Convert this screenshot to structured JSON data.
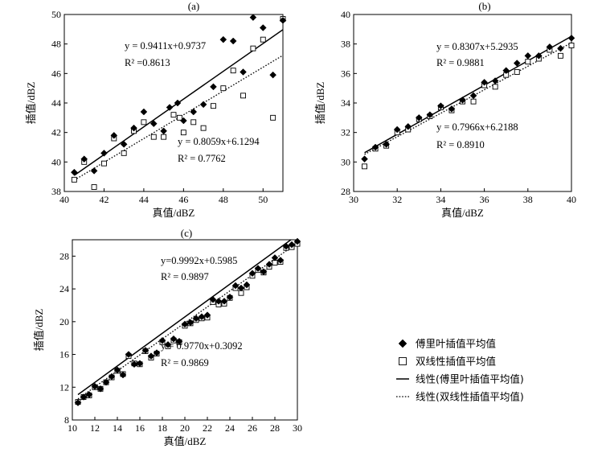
{
  "chart_data": [
    {
      "type": "scatter",
      "panel_label": "(a)",
      "xlabel": "真值/dBZ",
      "ylabel": "插值/dBZ",
      "xlim": [
        40,
        51
      ],
      "ylim": [
        38,
        50
      ],
      "xticks": [
        40,
        42,
        44,
        46,
        48,
        50
      ],
      "yticks": [
        38,
        40,
        42,
        44,
        46,
        48,
        50
      ],
      "series": [
        {
          "name": "傅里叶插值平均值",
          "marker": "diamond",
          "points": [
            [
              40.5,
              39.3
            ],
            [
              41.0,
              40.2
            ],
            [
              41.5,
              39.4
            ],
            [
              42.0,
              40.6
            ],
            [
              42.5,
              41.8
            ],
            [
              43.0,
              41.2
            ],
            [
              43.5,
              42.3
            ],
            [
              44.0,
              43.4
            ],
            [
              44.5,
              42.6
            ],
            [
              45.0,
              42.1
            ],
            [
              45.3,
              43.7
            ],
            [
              45.7,
              44.0
            ],
            [
              46.0,
              42.8
            ],
            [
              46.5,
              43.4
            ],
            [
              47.0,
              43.9
            ],
            [
              47.5,
              45.1
            ],
            [
              48.0,
              48.3
            ],
            [
              48.5,
              48.2
            ],
            [
              49.0,
              46.1
            ],
            [
              49.5,
              49.8
            ],
            [
              50.0,
              49.1
            ],
            [
              50.5,
              45.9
            ],
            [
              51.0,
              49.6
            ]
          ]
        },
        {
          "name": "双线性插值平均值",
          "marker": "square",
          "points": [
            [
              40.5,
              38.8
            ],
            [
              41.0,
              40.0
            ],
            [
              41.5,
              38.3
            ],
            [
              42.0,
              39.9
            ],
            [
              42.5,
              41.6
            ],
            [
              43.0,
              40.6
            ],
            [
              43.5,
              42.1
            ],
            [
              44.0,
              42.7
            ],
            [
              44.5,
              41.7
            ],
            [
              45.0,
              41.7
            ],
            [
              45.5,
              43.2
            ],
            [
              45.8,
              43.0
            ],
            [
              46.0,
              42.0
            ],
            [
              46.5,
              42.7
            ],
            [
              47.0,
              42.3
            ],
            [
              47.5,
              43.8
            ],
            [
              48.0,
              45.0
            ],
            [
              48.5,
              46.2
            ],
            [
              49.0,
              44.5
            ],
            [
              49.5,
              47.7
            ],
            [
              50.0,
              48.3
            ],
            [
              50.5,
              43.0
            ],
            [
              51.0,
              49.7
            ]
          ]
        }
      ],
      "fits": [
        {
          "name": "线性(傅里叶插值平均值)",
          "style": "solid",
          "slope": 0.9411,
          "intercept": 0.9737,
          "x_range": [
            40.5,
            51
          ]
        },
        {
          "name": "线性(双线性插值平均值)",
          "style": "dotted",
          "slope": 0.8059,
          "intercept": 6.1294,
          "x_range": [
            40.5,
            51
          ]
        }
      ],
      "annotations": [
        {
          "equation": "y = 0.9411x+0.9737",
          "r2": "R² =0.8613"
        },
        {
          "equation": "y = 0.8059x+6.1294",
          "r2": "R² = 0.7762"
        }
      ]
    },
    {
      "type": "scatter",
      "panel_label": "(b)",
      "xlabel": "真值/dBZ",
      "ylabel": "插值/dBZ",
      "xlim": [
        30,
        40
      ],
      "ylim": [
        28,
        40
      ],
      "xticks": [
        30,
        32,
        34,
        36,
        38,
        40
      ],
      "yticks": [
        28,
        30,
        32,
        34,
        36,
        38,
        40
      ],
      "series": [
        {
          "name": "傅里叶插值平均值",
          "marker": "diamond",
          "points": [
            [
              30.5,
              30.2
            ],
            [
              31.0,
              31.0
            ],
            [
              31.5,
              31.2
            ],
            [
              32.0,
              32.2
            ],
            [
              32.5,
              32.4
            ],
            [
              33.0,
              33.0
            ],
            [
              33.5,
              33.2
            ],
            [
              34.0,
              33.8
            ],
            [
              34.5,
              33.6
            ],
            [
              35.0,
              34.2
            ],
            [
              35.5,
              34.5
            ],
            [
              36.0,
              35.4
            ],
            [
              36.5,
              35.5
            ],
            [
              37.0,
              36.2
            ],
            [
              37.5,
              36.7
            ],
            [
              38.0,
              37.2
            ],
            [
              38.5,
              37.2
            ],
            [
              39.0,
              37.8
            ],
            [
              39.5,
              37.7
            ],
            [
              40.0,
              38.4
            ]
          ]
        },
        {
          "name": "双线性插值平均值",
          "marker": "square",
          "points": [
            [
              30.5,
              29.7
            ],
            [
              31.0,
              30.9
            ],
            [
              31.5,
              31.1
            ],
            [
              32.0,
              32.0
            ],
            [
              32.5,
              32.2
            ],
            [
              33.0,
              32.9
            ],
            [
              33.5,
              33.1
            ],
            [
              34.0,
              33.7
            ],
            [
              34.5,
              33.5
            ],
            [
              35.0,
              34.1
            ],
            [
              35.5,
              34.1
            ],
            [
              36.0,
              35.2
            ],
            [
              36.5,
              35.1
            ],
            [
              37.0,
              35.9
            ],
            [
              37.5,
              36.1
            ],
            [
              38.0,
              36.8
            ],
            [
              38.5,
              37.0
            ],
            [
              39.0,
              37.6
            ],
            [
              39.5,
              37.2
            ],
            [
              40.0,
              37.9
            ]
          ]
        }
      ],
      "fits": [
        {
          "name": "线性(傅里叶插值平均值)",
          "style": "solid",
          "slope": 0.8307,
          "intercept": 5.2935,
          "x_range": [
            30.5,
            40
          ]
        },
        {
          "name": "线性(双线性插值平均值)",
          "style": "dotted",
          "slope": 0.7966,
          "intercept": 6.2188,
          "x_range": [
            30.5,
            40
          ]
        }
      ],
      "annotations": [
        {
          "equation": "y = 0.8307x+5.2935",
          "r2": "R² = 0.9881"
        },
        {
          "equation": "y = 0.7966x+6.2188",
          "r2": "R² = 0.8910"
        }
      ]
    },
    {
      "type": "scatter",
      "panel_label": "(c)",
      "xlabel": "真值/dBZ",
      "ylabel": "插值/dBZ",
      "xlim": [
        10,
        30
      ],
      "ylim": [
        8,
        30
      ],
      "xticks": [
        10,
        12,
        14,
        16,
        18,
        20,
        22,
        24,
        26,
        28,
        30
      ],
      "yticks": [
        8,
        12,
        16,
        20,
        24,
        28
      ],
      "series": [
        {
          "name": "傅里叶插值平均值",
          "marker": "diamond",
          "points": [
            [
              10.5,
              10.1
            ],
            [
              11.0,
              10.8
            ],
            [
              11.5,
              11.1
            ],
            [
              12.0,
              12.1
            ],
            [
              12.5,
              11.8
            ],
            [
              13.0,
              12.6
            ],
            [
              13.5,
              13.3
            ],
            [
              14.0,
              14.1
            ],
            [
              14.5,
              13.5
            ],
            [
              15.0,
              16.0
            ],
            [
              15.5,
              14.8
            ],
            [
              16.0,
              14.9
            ],
            [
              16.5,
              16.5
            ],
            [
              17.0,
              15.8
            ],
            [
              17.5,
              16.2
            ],
            [
              18.0,
              17.7
            ],
            [
              18.5,
              17.2
            ],
            [
              19.0,
              17.9
            ],
            [
              19.5,
              17.6
            ],
            [
              20.0,
              19.7
            ],
            [
              20.5,
              19.9
            ],
            [
              21.0,
              20.4
            ],
            [
              21.5,
              20.6
            ],
            [
              22.0,
              20.8
            ],
            [
              22.5,
              22.7
            ],
            [
              23.0,
              22.5
            ],
            [
              23.5,
              22.5
            ],
            [
              24.0,
              23.0
            ],
            [
              24.5,
              24.4
            ],
            [
              25.0,
              24.1
            ],
            [
              25.5,
              24.5
            ],
            [
              26.0,
              25.9
            ],
            [
              26.5,
              26.5
            ],
            [
              27.0,
              26.1
            ],
            [
              27.5,
              27.0
            ],
            [
              28.0,
              27.8
            ],
            [
              28.5,
              27.5
            ],
            [
              29.0,
              29.2
            ],
            [
              29.5,
              29.4
            ],
            [
              30.0,
              29.8
            ]
          ]
        },
        {
          "name": "双线性插值平均值",
          "marker": "square",
          "points": [
            [
              10.5,
              10.2
            ],
            [
              11.0,
              10.8
            ],
            [
              11.5,
              11.0
            ],
            [
              12.0,
              12.0
            ],
            [
              12.5,
              11.8
            ],
            [
              13.0,
              12.6
            ],
            [
              13.5,
              13.2
            ],
            [
              14.0,
              14.0
            ],
            [
              14.5,
              13.6
            ],
            [
              15.0,
              15.8
            ],
            [
              15.5,
              14.9
            ],
            [
              16.0,
              14.8
            ],
            [
              16.5,
              16.4
            ],
            [
              17.0,
              15.6
            ],
            [
              17.5,
              16.1
            ],
            [
              18.0,
              17.5
            ],
            [
              18.5,
              17.0
            ],
            [
              19.0,
              17.7
            ],
            [
              19.5,
              17.5
            ],
            [
              20.0,
              19.5
            ],
            [
              20.5,
              19.8
            ],
            [
              21.0,
              20.2
            ],
            [
              21.5,
              20.4
            ],
            [
              22.0,
              20.5
            ],
            [
              22.5,
              22.4
            ],
            [
              23.0,
              22.1
            ],
            [
              23.5,
              22.2
            ],
            [
              24.0,
              22.9
            ],
            [
              24.5,
              24.1
            ],
            [
              25.0,
              23.5
            ],
            [
              25.5,
              24.2
            ],
            [
              26.0,
              25.6
            ],
            [
              26.5,
              26.3
            ],
            [
              27.0,
              26.0
            ],
            [
              27.5,
              26.7
            ],
            [
              28.0,
              27.2
            ],
            [
              28.5,
              27.3
            ],
            [
              29.0,
              29.0
            ],
            [
              29.5,
              29.1
            ],
            [
              30.0,
              29.5
            ]
          ]
        }
      ],
      "fits": [
        {
          "name": "线性(傅里叶插值平均值)",
          "style": "solid",
          "slope": 0.9992,
          "intercept": 0.5985,
          "x_range": [
            10.5,
            30
          ]
        },
        {
          "name": "线性(双线性插值平均值)",
          "style": "dotted",
          "slope": 0.977,
          "intercept": 0.3092,
          "x_range": [
            10.5,
            30
          ]
        }
      ],
      "annotations": [
        {
          "equation": "y=0.9992x+0.5985",
          "r2": "R² = 0.9897"
        },
        {
          "equation": "y = 0.9770x+0.3092",
          "r2": "R² = 0.9869"
        }
      ]
    }
  ],
  "legend": {
    "items": [
      {
        "label": "傅里叶插值平均值",
        "symbol": "diamond"
      },
      {
        "label": "双线性插值平均值",
        "symbol": "square"
      },
      {
        "label": "线性(傅里叶插值平均值)",
        "symbol": "solid-line"
      },
      {
        "label": "线性(双线性插值平均值)",
        "symbol": "dotted-line"
      }
    ]
  }
}
